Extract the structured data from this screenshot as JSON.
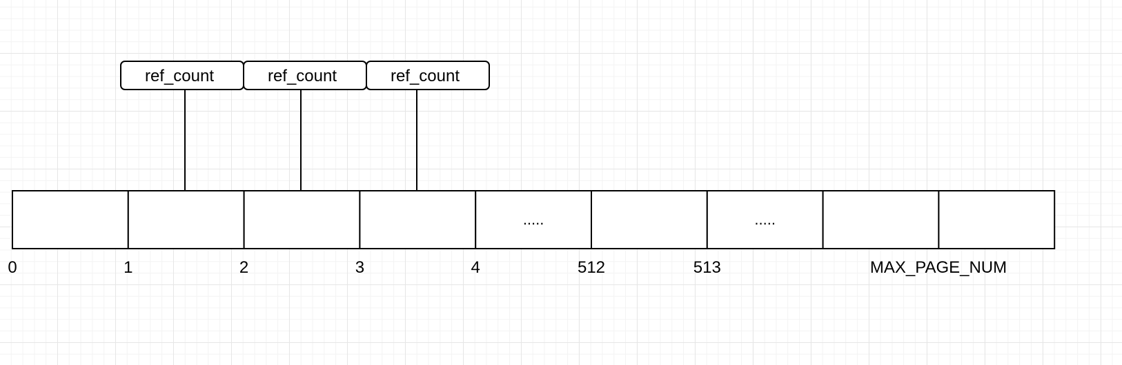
{
  "ref_boxes": [
    {
      "label": "ref_count",
      "points_to_cell": 1
    },
    {
      "label": "ref_count",
      "points_to_cell": 2
    },
    {
      "label": "ref_count",
      "points_to_cell": 3
    }
  ],
  "array": {
    "cells": [
      "",
      "",
      "",
      "",
      ".....",
      "",
      ".....",
      "",
      ""
    ]
  },
  "index_labels": [
    "0",
    "1",
    "2",
    "3",
    "4",
    "512",
    "513",
    "MAX_PAGE_NUM"
  ]
}
